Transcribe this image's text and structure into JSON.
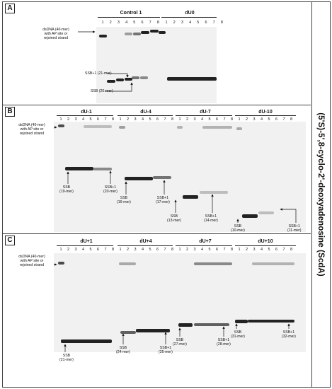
{
  "side_title": "(5'S)-5',8-cyclo-2'-deoxyadenosine (ScdA)",
  "lane_numbers": [
    "1",
    "2",
    "3",
    "4",
    "5",
    "6",
    "7",
    "8"
  ],
  "dsdna_label_lines": [
    "dsDNA (40-mer)",
    "with AP site or",
    "rejoined strand"
  ],
  "panelA": {
    "label": "A",
    "groups": [
      "Control 1",
      "dU0"
    ],
    "ssb1": "SSB+1 (21-mer)",
    "ssb": "SSB (20-mer)"
  },
  "panelB": {
    "label": "B",
    "groups": [
      "dU-1",
      "dU-4",
      "dU-7",
      "dU-10"
    ],
    "annotations": [
      [
        "SSB",
        "(19-mer)"
      ],
      [
        "SSB+1",
        "(20-mer)"
      ],
      [
        "SSB",
        "(16-mer)"
      ],
      [
        "SSB+1",
        "(17-mer)"
      ],
      [
        "SSB",
        "(13-mer)"
      ],
      [
        "SSB+1",
        "(14-mer)"
      ],
      [
        "SSB",
        "(10-mer)"
      ],
      [
        "SSB+1",
        "(11-mer)"
      ]
    ]
  },
  "panelC": {
    "label": "C",
    "groups": [
      "dU+1",
      "dU+4",
      "dU+7",
      "dU+10"
    ],
    "annotations": [
      [
        "SSB",
        "(21-mer)"
      ],
      [
        "SSB",
        "(24-mer)"
      ],
      [
        "SSB+1",
        "(25-mer)"
      ],
      [
        "SSB",
        "(27-mer)"
      ],
      [
        "SSB+1",
        "(28-mer)"
      ],
      [
        "SSB",
        "(31-mer)"
      ],
      [
        "SSB+1",
        "(32-mer)"
      ]
    ]
  }
}
